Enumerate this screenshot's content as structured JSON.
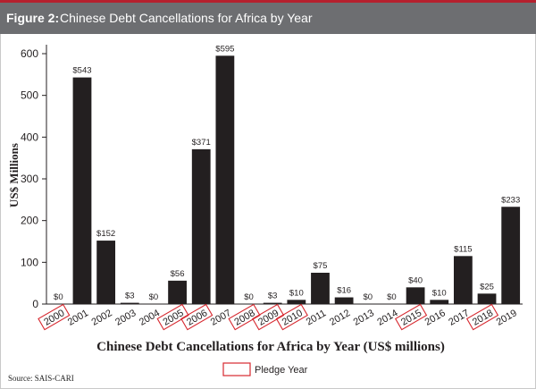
{
  "figure": {
    "label": "Figure 2:",
    "title": "Chinese Debt Cancellations for Africa by Year"
  },
  "source": "Source: SAIS-CARI",
  "chart_data": {
    "type": "bar",
    "title": "",
    "xlabel": "Chinese Debt Cancellations for Africa by Year (US$ millions)",
    "ylabel": "US$ Millions",
    "ylim": [
      0,
      600
    ],
    "yticks": [
      "0",
      "100",
      "200",
      "300",
      "400",
      "500",
      "600"
    ],
    "categories": [
      "2000",
      "2001",
      "2002",
      "2003",
      "2004",
      "2005",
      "2006",
      "2007",
      "2008",
      "2009",
      "2010",
      "2011",
      "2012",
      "2013",
      "2014",
      "2015",
      "2016",
      "2017",
      "2018",
      "2019"
    ],
    "values": [
      0,
      543,
      152,
      3,
      0,
      56,
      371,
      595,
      0,
      3,
      10,
      75,
      16,
      0,
      0,
      40,
      10,
      115,
      25,
      233
    ],
    "value_labels": [
      "$0",
      "$543",
      "$152",
      "$3",
      "$0",
      "$56",
      "$371",
      "$595",
      "$0",
      "$3",
      "$10",
      "$75",
      "$16",
      "$0",
      "$0",
      "$40",
      "$10",
      "$115",
      "$25",
      "$233"
    ],
    "pledge_years": [
      "2000",
      "2005",
      "2006",
      "2008",
      "2009",
      "2010",
      "2015",
      "2018"
    ],
    "legend": {
      "label": "Pledge Year",
      "placement": "bottom-center"
    },
    "grid": false,
    "colors": {
      "bar": "#231f20",
      "pledge_box": "#d7282f",
      "title_bar": "#6d6e71",
      "accent_rule": "#b5202e"
    }
  }
}
